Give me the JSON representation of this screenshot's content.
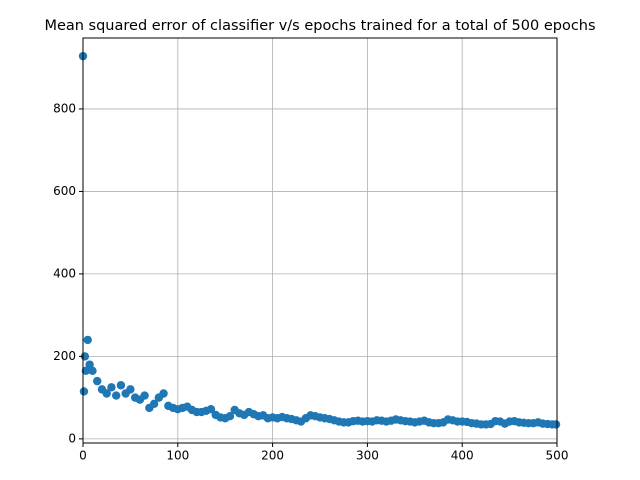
{
  "chart_data": {
    "type": "scatter",
    "title": "Mean squared error of classifier v/s epochs trained for a total of 500 epochs",
    "x": [
      0,
      1,
      2,
      3,
      5,
      7,
      10,
      15,
      20,
      25,
      30,
      35,
      40,
      45,
      50,
      55,
      60,
      65,
      70,
      75,
      80,
      85,
      90,
      95,
      100,
      105,
      110,
      115,
      120,
      125,
      130,
      135,
      140,
      145,
      150,
      155,
      160,
      165,
      170,
      175,
      180,
      185,
      190,
      195,
      200,
      205,
      210,
      215,
      220,
      225,
      230,
      235,
      240,
      245,
      250,
      255,
      260,
      265,
      270,
      275,
      280,
      285,
      290,
      295,
      300,
      305,
      310,
      315,
      320,
      325,
      330,
      335,
      340,
      345,
      350,
      355,
      360,
      365,
      370,
      375,
      380,
      385,
      390,
      395,
      400,
      405,
      410,
      415,
      420,
      425,
      430,
      435,
      440,
      445,
      450,
      455,
      460,
      465,
      470,
      475,
      480,
      485,
      490,
      495,
      499
    ],
    "values": [
      928,
      115,
      200,
      165,
      240,
      180,
      165,
      140,
      120,
      110,
      125,
      105,
      130,
      110,
      120,
      100,
      95,
      105,
      75,
      85,
      100,
      110,
      80,
      75,
      72,
      75,
      78,
      70,
      65,
      65,
      68,
      72,
      58,
      52,
      50,
      55,
      70,
      62,
      58,
      65,
      60,
      55,
      57,
      50,
      52,
      50,
      53,
      50,
      48,
      45,
      42,
      50,
      57,
      55,
      52,
      50,
      48,
      45,
      42,
      40,
      40,
      43,
      44,
      42,
      43,
      42,
      45,
      44,
      42,
      44,
      47,
      45,
      43,
      42,
      40,
      42,
      44,
      40,
      38,
      38,
      40,
      47,
      45,
      42,
      42,
      41,
      38,
      37,
      35,
      35,
      36,
      43,
      42,
      37,
      42,
      43,
      40,
      39,
      38,
      38,
      40,
      37,
      36,
      35,
      35
    ],
    "color": "#1f77b4",
    "xlim": [
      0,
      500
    ],
    "xticks": [
      0,
      100,
      200,
      300,
      400,
      500
    ],
    "ylim": [
      -10,
      972
    ],
    "yticks": [
      0,
      200,
      400,
      600,
      800
    ],
    "grid": true
  }
}
